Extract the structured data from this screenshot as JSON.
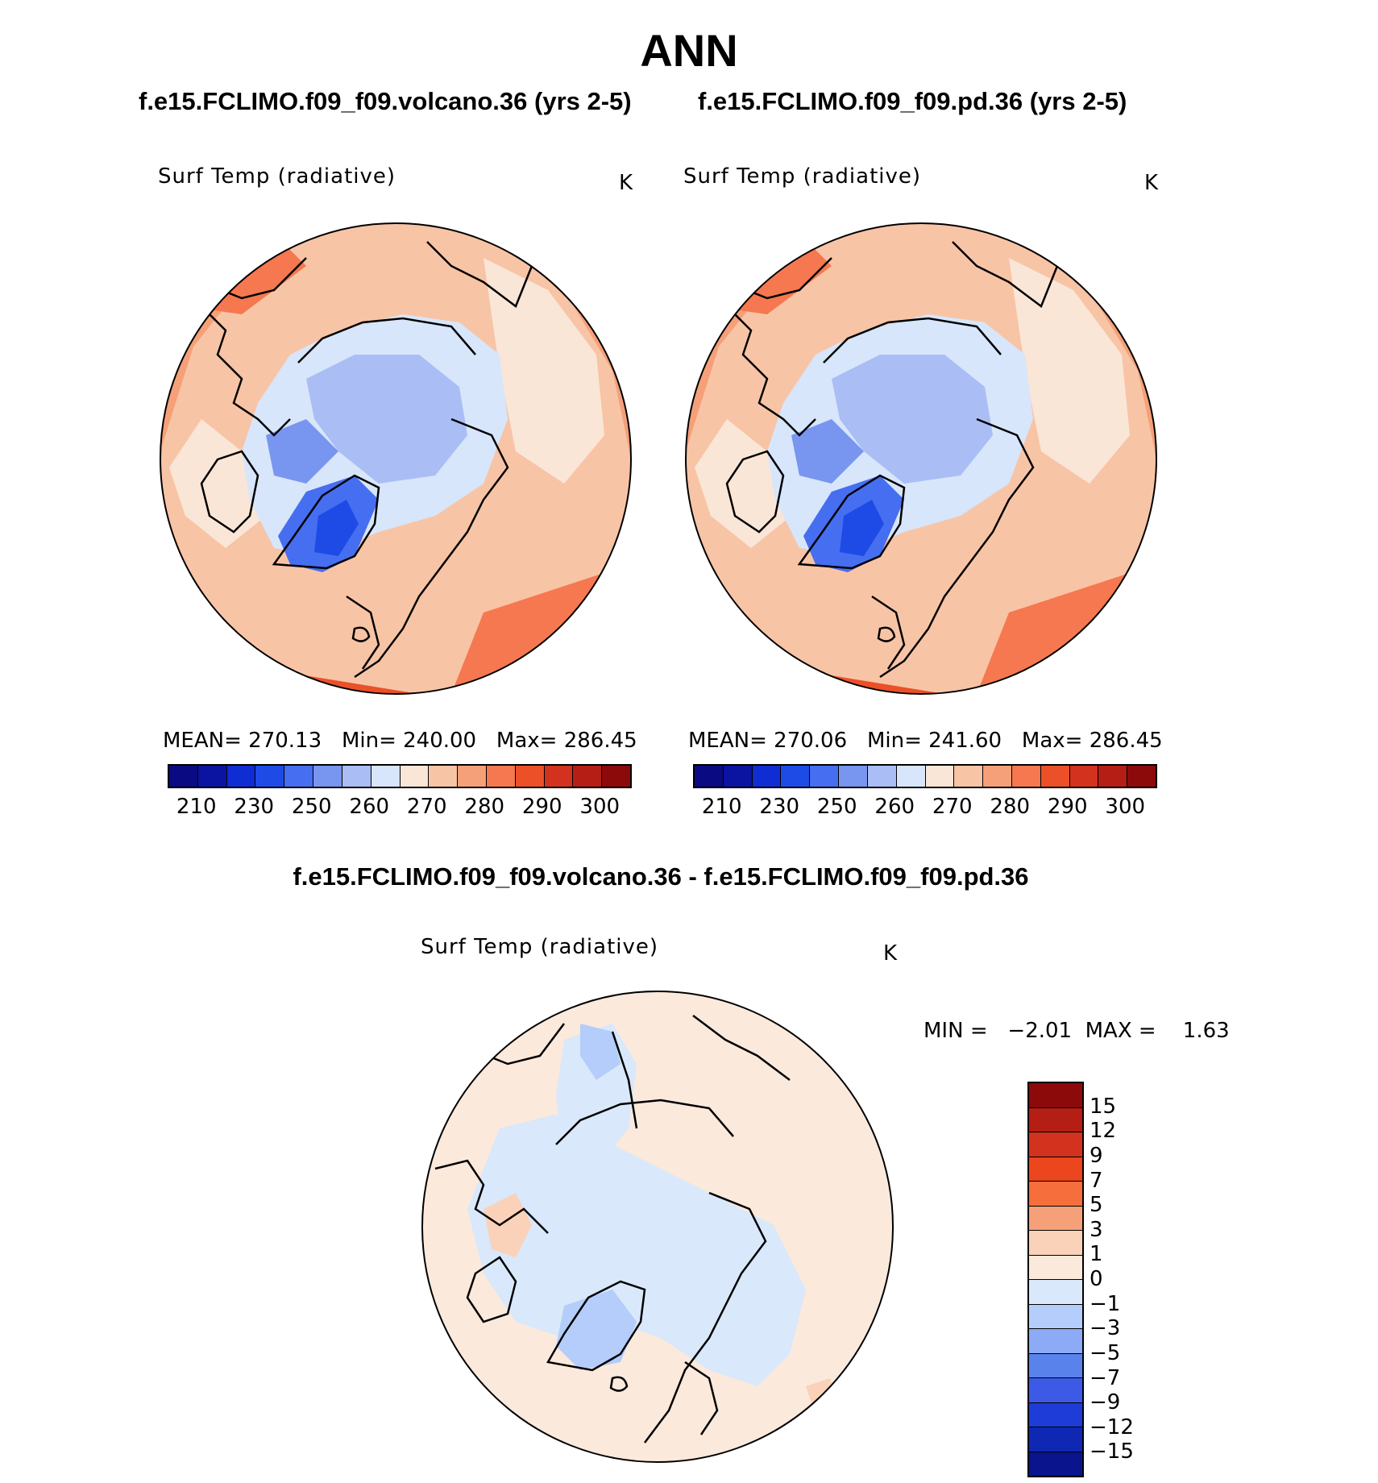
{
  "title": "ANN",
  "panels": [
    {
      "case_title": "f.e15.FCLIMO.f09_f09.volcano.36 (yrs 2-5)",
      "variable": "Surf Temp (radiative)",
      "units": "K",
      "mean_label": "MEAN=",
      "mean": "270.13",
      "min_label": "Min=",
      "min": "240.00",
      "max_label": "Max=",
      "max": "286.45"
    },
    {
      "case_title": "f.e15.FCLIMO.f09_f09.pd.36 (yrs 2-5)",
      "variable": "Surf Temp (radiative)",
      "units": "K",
      "mean_label": "MEAN=",
      "mean": "270.06",
      "min_label": "Min=",
      "min": "241.60",
      "max_label": "Max=",
      "max": "286.45"
    }
  ],
  "abs_colorbar": {
    "colors": [
      "#0a0a82",
      "#0a14a0",
      "#0f2dd2",
      "#1e4be6",
      "#466ef0",
      "#7896f0",
      "#aabef5",
      "#d7e6fa",
      "#fae6d7",
      "#f8c4a6",
      "#f5a078",
      "#f57850",
      "#eb5028",
      "#d2321e",
      "#b41e14",
      "#8c0a0a"
    ],
    "tick_labels": [
      "210",
      "230",
      "250",
      "260",
      "270",
      "280",
      "290",
      "300"
    ]
  },
  "diff_panel": {
    "title": "f.e15.FCLIMO.f09_f09.volcano.36 - f.e15.FCLIMO.f09_f09.pd.36",
    "variable": "Surf Temp (radiative)",
    "units": "K",
    "min_label": "MIN =",
    "min": "−2.01",
    "max_label": "MAX =",
    "max": "1.63"
  },
  "diff_colorbar": {
    "colors": [
      "#8c0a0a",
      "#b41e14",
      "#d2321e",
      "#eb461e",
      "#f56e3c",
      "#f5a078",
      "#fad2b9",
      "#fbe9dc",
      "#d9e8fb",
      "#b4cdfa",
      "#8caaf5",
      "#5a82eb",
      "#3c5ae6",
      "#1e3cd7",
      "#0f28b4",
      "#0a148c"
    ],
    "tick_labels": [
      "15",
      "12",
      "9",
      "7",
      "5",
      "3",
      "1",
      "0",
      "−1",
      "−3",
      "−5",
      "−7",
      "−9",
      "−12",
      "−15"
    ]
  }
}
